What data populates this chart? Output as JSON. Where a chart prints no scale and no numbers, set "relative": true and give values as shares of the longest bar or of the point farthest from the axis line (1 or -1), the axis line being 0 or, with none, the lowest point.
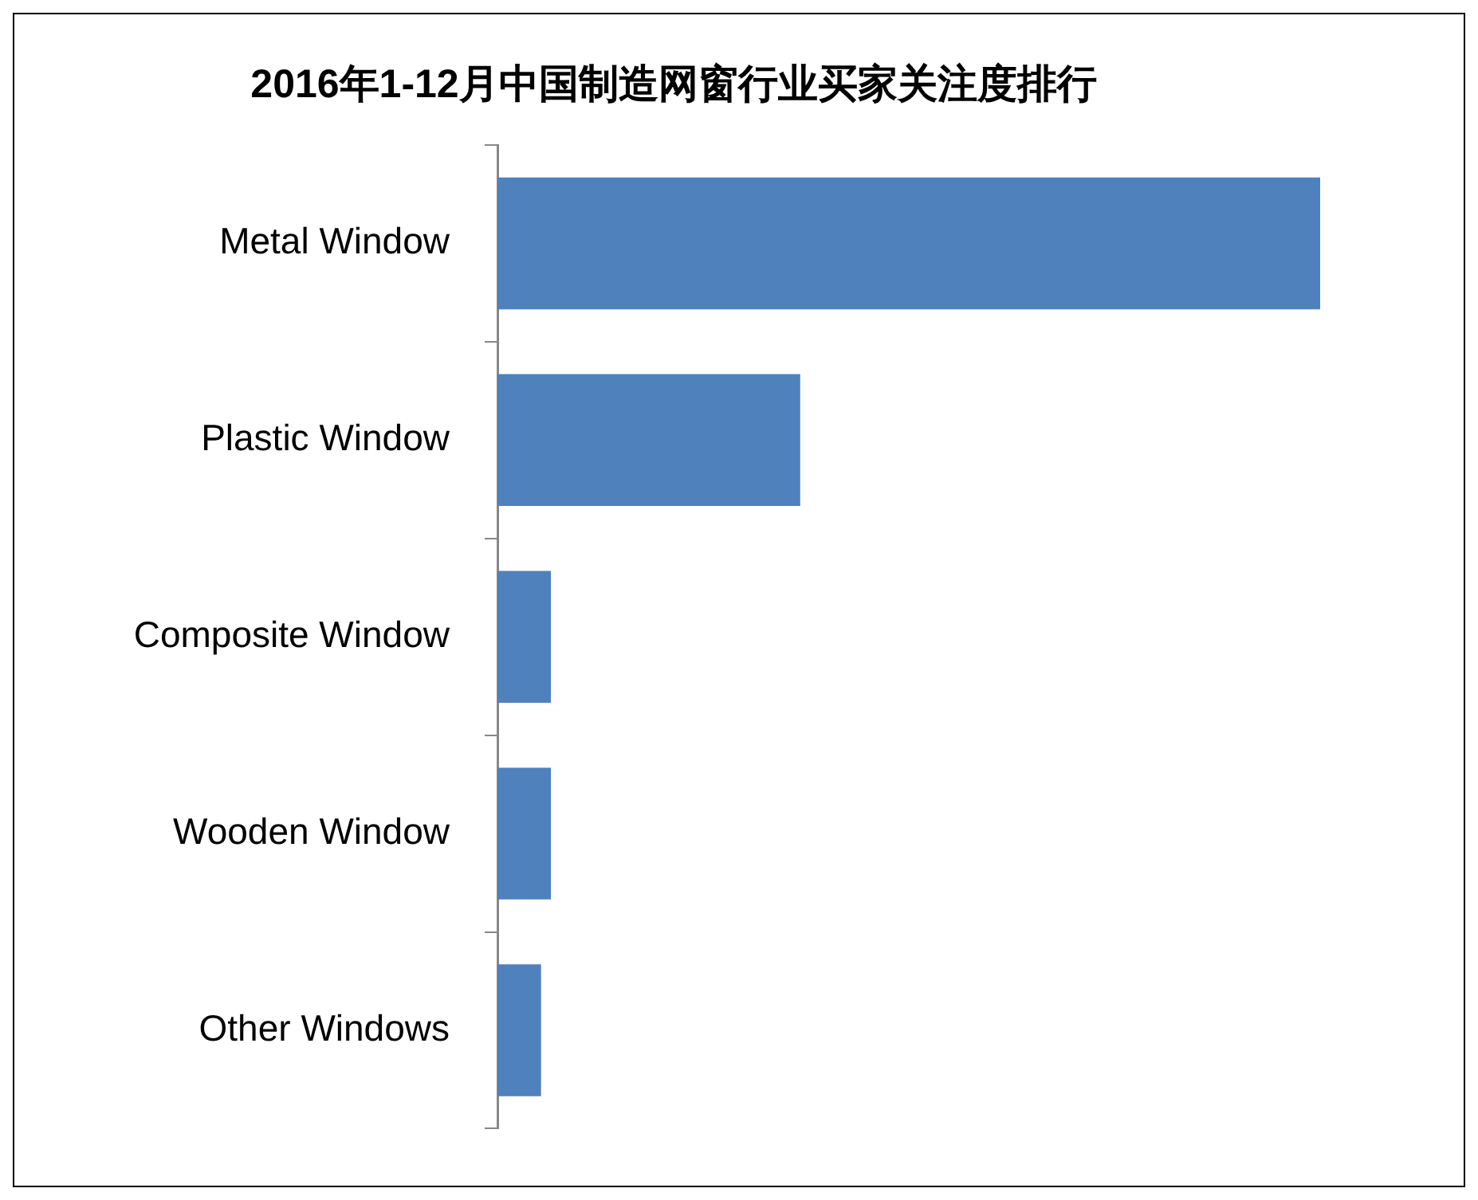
{
  "chart_data": {
    "type": "bar",
    "title": "2016年1-12月中国制造网窗行业买家关注度排行",
    "orientation": "horizontal",
    "relative": true,
    "categories": [
      "Metal Window",
      "Plastic Window",
      "Composite Window",
      "Wooden Window",
      "Other Windows"
    ],
    "values": [
      1,
      0.368,
      0.065,
      0.065,
      0.053
    ],
    "color": "#4f81bd",
    "legend": false
  }
}
